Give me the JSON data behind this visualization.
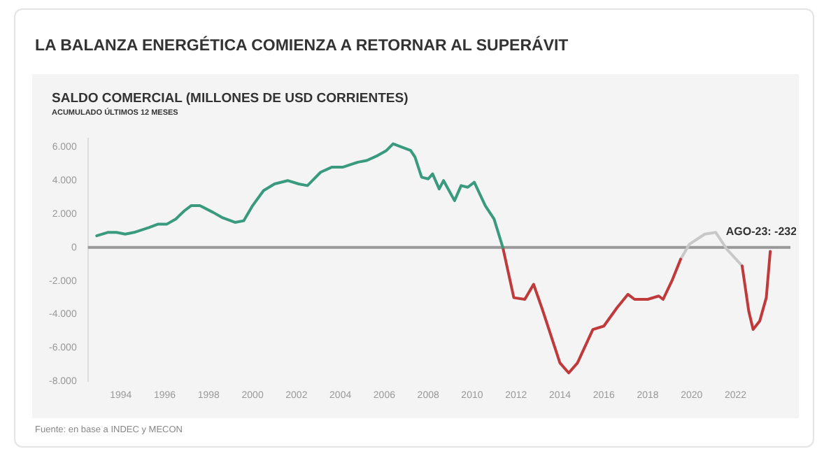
{
  "chart_data": {
    "type": "line",
    "title": "LA BALANZA ENERGÉTICA COMIENZA A RETORNAR AL SUPERÁVIT",
    "subtitle": "SALDO COMERCIAL (MILLONES DE USD CORRIENTES)",
    "annotations": [
      "ACUMULADO ÚLTIMOS 12 MESES",
      {
        "text": "AGO-23: -232",
        "x": 2023.58,
        "y": -232
      },
      "Fuente: en base a INDEC y MECON"
    ],
    "series": [
      {
        "color": "#3a9a7e",
        "x": [
          1992.9,
          1993.4,
          1993.8,
          1994.2,
          1994.6,
          1995.3,
          1995.7,
          1996.1,
          1996.5,
          1996.9,
          1997.2,
          1997.6,
          1998.2,
          1998.6,
          1999.2,
          1999.6,
          2000.0,
          2000.5,
          2001.0,
          2001.6,
          2002.1,
          2002.5,
          2003.1,
          2003.6,
          2004.1,
          2004.8,
          2005.2,
          2005.7,
          2006.1,
          2006.4,
          2006.8,
          2007.2,
          2007.4,
          2007.7,
          2008.0,
          2008.2,
          2008.5,
          2008.7,
          2009.2,
          2009.5,
          2009.8,
          2010.1,
          2010.6,
          2011.0,
          2011.4
        ],
        "values": [
          700,
          900,
          900,
          800,
          900,
          1200,
          1400,
          1400,
          1700,
          2200,
          2500,
          2500,
          2100,
          1800,
          1500,
          1600,
          2500,
          3400,
          3800,
          4000,
          3800,
          3700,
          4500,
          4800,
          4800,
          5100,
          5200,
          5500,
          5800,
          6200,
          6000,
          5800,
          5400,
          4200,
          4100,
          4400,
          3500,
          4000,
          2800,
          3700,
          3600,
          3900,
          2500,
          1700,
          0
        ]
      },
      {
        "color": "#c0393b",
        "x": [
          2011.4,
          2011.9,
          2012.4,
          2012.8,
          2013.2,
          2013.6,
          2014.0,
          2014.4,
          2014.8,
          2015.5,
          2016.0,
          2016.6,
          2017.1,
          2017.4,
          2018.0,
          2018.5,
          2018.7,
          2019.1,
          2019.5,
          2020.9,
          2022.3,
          2022.6,
          2022.8,
          2023.1,
          2023.4,
          2023.58
        ],
        "values": [
          0,
          -3000,
          -3100,
          -2200,
          -3700,
          -5300,
          -6900,
          -7500,
          -6900,
          -4900,
          -4700,
          -3600,
          -2800,
          -3100,
          -3100,
          -2900,
          -3100,
          -2000,
          -700,
          null,
          -1100,
          -3800,
          -4900,
          -4400,
          -3000,
          -232
        ]
      },
      {
        "color": "#c8c8c8",
        "x": [
          2019.5,
          2019.9,
          2020.6,
          2021.1,
          2021.6,
          2022.3
        ],
        "values": [
          -700,
          200,
          800,
          900,
          -100,
          -1100
        ]
      }
    ],
    "xlim": [
      1992.5,
      2024.5
    ],
    "xticks": [
      1994,
      1996,
      1998,
      2000,
      2002,
      2004,
      2006,
      2008,
      2010,
      2012,
      2014,
      2016,
      2018,
      2020,
      2022
    ],
    "ylim": [
      -8000,
      6500
    ],
    "yticks": [
      {
        "value": -8000,
        "label": "-8.000"
      },
      {
        "value": -6000,
        "label": "-6.000"
      },
      {
        "value": -4000,
        "label": "-4.000"
      },
      {
        "value": -2000,
        "label": "-2.000"
      },
      0,
      {
        "value": 2000,
        "label": "2.000"
      },
      {
        "value": 4000,
        "label": "4.000"
      },
      {
        "value": 6000,
        "label": "6.000"
      }
    ],
    "ref_lines": [
      {
        "axis": "y",
        "value": 0,
        "color": "#999999"
      }
    ],
    "grid": false,
    "legend": false,
    "marker": "none",
    "line_style": "solid"
  }
}
